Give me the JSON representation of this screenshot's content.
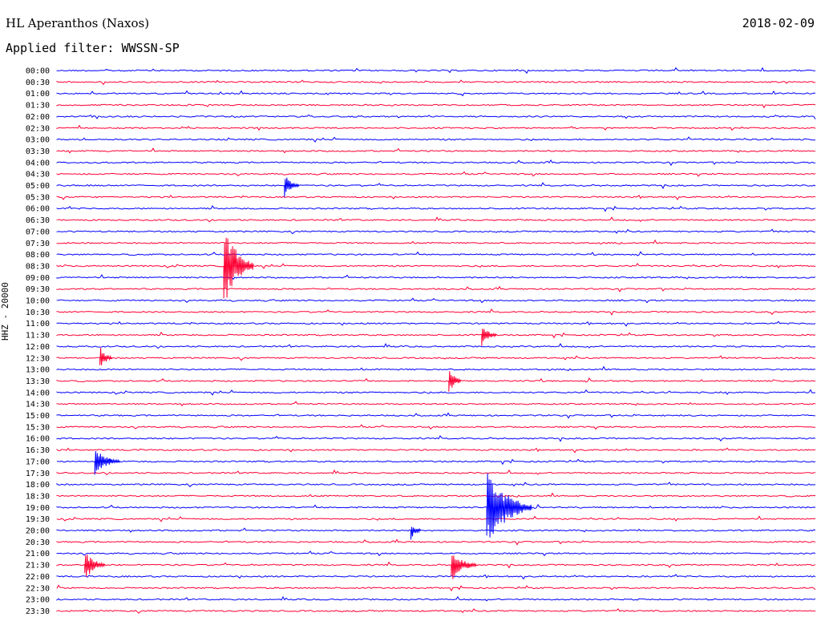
{
  "header": {
    "station": "HL Aperanthos (Naxos)",
    "date": "2018-02-09",
    "filter": "Applied filter: WWSSN-SP"
  },
  "chart_data": {
    "type": "line",
    "title": "HL Aperanthos (Naxos)",
    "ylabel": "HHZ - 20000",
    "colors": [
      "#0000ff",
      "#ff0033"
    ],
    "rows": [
      "00:00",
      "00:30",
      "01:00",
      "01:30",
      "02:00",
      "02:30",
      "03:00",
      "03:30",
      "04:00",
      "04:30",
      "05:00",
      "05:30",
      "06:00",
      "06:30",
      "07:00",
      "07:30",
      "08:00",
      "08:30",
      "09:00",
      "09:30",
      "10:00",
      "10:30",
      "11:00",
      "11:30",
      "12:00",
      "12:30",
      "13:00",
      "13:30",
      "14:00",
      "14:30",
      "15:00",
      "15:30",
      "16:00",
      "16:30",
      "17:00",
      "17:30",
      "18:00",
      "18:30",
      "19:00",
      "19:30",
      "20:00",
      "20:30",
      "21:00",
      "21:30",
      "22:00",
      "22:30",
      "23:00",
      "23:30"
    ],
    "events": [
      {
        "row": "08:30",
        "minute": 6.6,
        "amplitude": 1.0,
        "duration": 1.2
      },
      {
        "row": "05:00",
        "minute": 9.0,
        "amplitude": 0.25,
        "duration": 0.6
      },
      {
        "row": "21:30",
        "minute": 1.1,
        "amplitude": 0.35,
        "duration": 0.8
      },
      {
        "row": "21:30",
        "minute": 15.6,
        "amplitude": 0.4,
        "duration": 1.0
      },
      {
        "row": "19:00",
        "minute": 17.0,
        "amplitude": 0.95,
        "duration": 1.8
      },
      {
        "row": "13:30",
        "minute": 15.5,
        "amplitude": 0.3,
        "duration": 0.5
      },
      {
        "row": "11:30",
        "minute": 16.8,
        "amplitude": 0.25,
        "duration": 0.6
      },
      {
        "row": "17:00",
        "minute": 1.5,
        "amplitude": 0.3,
        "duration": 1.0
      },
      {
        "row": "12:30",
        "minute": 1.7,
        "amplitude": 0.25,
        "duration": 0.5
      },
      {
        "row": "20:00",
        "minute": 14.0,
        "amplitude": 0.2,
        "duration": 0.4
      }
    ]
  }
}
